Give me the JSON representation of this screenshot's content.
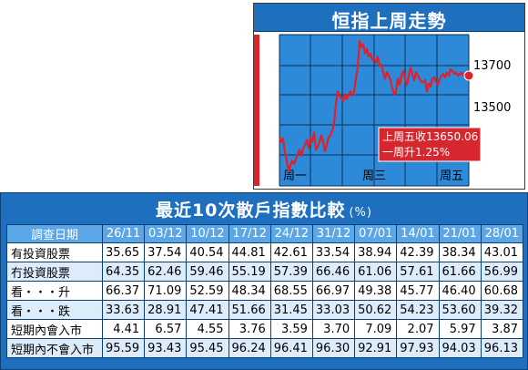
{
  "chart_data": [
    {
      "type": "line",
      "title": "恒指上周走勢",
      "y_ticks": [
        "13700",
        "13500"
      ],
      "x_labels": [
        "周一",
        "周三",
        "周五"
      ],
      "annotation": [
        "上周五收13650.06",
        "一周升1.25%"
      ],
      "ylim": [
        13300,
        13780
      ],
      "series": [
        {
          "color": "#e0202a",
          "x": [
            0,
            2,
            4,
            6,
            8,
            10,
            12,
            14,
            16,
            18,
            20,
            22,
            24,
            26,
            28,
            30,
            32,
            34,
            36,
            38,
            40,
            42,
            44,
            46,
            48,
            50,
            52,
            54,
            56,
            58,
            60,
            62,
            64,
            66,
            68,
            70,
            72,
            74,
            76,
            78,
            80,
            82,
            84,
            86,
            88,
            90,
            92,
            94,
            96,
            98,
            100,
            102,
            104,
            106,
            108,
            110,
            112,
            114,
            116,
            118,
            120,
            122,
            124,
            126,
            128,
            130,
            132,
            134,
            136,
            138,
            140,
            142,
            144,
            146,
            148,
            150,
            152,
            154,
            156,
            158,
            160,
            162,
            164,
            166,
            168,
            170,
            172,
            174,
            176,
            178,
            180,
            182,
            184,
            186,
            188,
            190,
            192,
            194,
            196,
            198,
            200,
            202,
            204,
            206,
            208
          ],
          "values": [
            13455,
            13440,
            13450,
            13405,
            13380,
            13345,
            13365,
            13380,
            13370,
            13385,
            13400,
            13415,
            13395,
            13420,
            13430,
            13445,
            13420,
            13455,
            13440,
            13470,
            13415,
            13425,
            13440,
            13460,
            13440,
            13410,
            13430,
            13455,
            13460,
            13475,
            13500,
            13560,
            13600,
            13585,
            13580,
            13570,
            13590,
            13575,
            13590,
            13600,
            13585,
            13600,
            13640,
            13680,
            13760,
            13740,
            13750,
            13720,
            13735,
            13710,
            13720,
            13700,
            13705,
            13690,
            13710,
            13680,
            13685,
            13660,
            13640,
            13660,
            13650,
            13635,
            13610,
            13590,
            13600,
            13640,
            13620,
            13650,
            13665,
            13640,
            13620,
            13650,
            13675,
            13655,
            13635,
            13660,
            13650,
            13640,
            13630,
            13630,
            13635,
            13600,
            13625,
            13615,
            13640,
            13645,
            13630,
            13620,
            13640,
            13650,
            13655,
            13645,
            13660,
            13650,
            13670,
            13665,
            13655,
            13660,
            13650,
            13655,
            13660,
            13650,
            13650,
            13650,
            13650
          ]
        }
      ]
    },
    {
      "type": "table",
      "title": "最近10次散戶指數比較",
      "unit": "(%)",
      "columns": [
        "調查日期",
        "26/11",
        "03/12",
        "10/12",
        "17/12",
        "24/12",
        "31/12",
        "07/01",
        "14/01",
        "21/01",
        "28/01"
      ],
      "rows": [
        [
          "有投資股票",
          "35.65",
          "37.54",
          "40.54",
          "44.81",
          "42.61",
          "33.54",
          "38.94",
          "42.39",
          "38.34",
          "43.01"
        ],
        [
          "冇投資股票",
          "64.35",
          "62.46",
          "59.46",
          "55.19",
          "57.39",
          "66.46",
          "61.06",
          "57.61",
          "61.66",
          "56.99"
        ],
        [
          "看・・・升",
          "66.37",
          "71.09",
          "52.59",
          "48.34",
          "68.55",
          "66.97",
          "49.38",
          "45.77",
          "46.40",
          "60.68"
        ],
        [
          "看・・・跌",
          "33.63",
          "28.91",
          "47.41",
          "51.66",
          "31.45",
          "33.03",
          "50.62",
          "54.23",
          "53.60",
          "39.32"
        ],
        [
          "短期內會入市",
          "4.41",
          "6.57",
          "4.55",
          "3.76",
          "3.59",
          "3.70",
          "7.09",
          "2.07",
          "5.97",
          "3.87"
        ],
        [
          "短期內不會入市",
          "95.59",
          "93.43",
          "95.45",
          "96.24",
          "96.41",
          "96.30",
          "92.91",
          "97.93",
          "94.03",
          "96.13"
        ]
      ]
    }
  ]
}
